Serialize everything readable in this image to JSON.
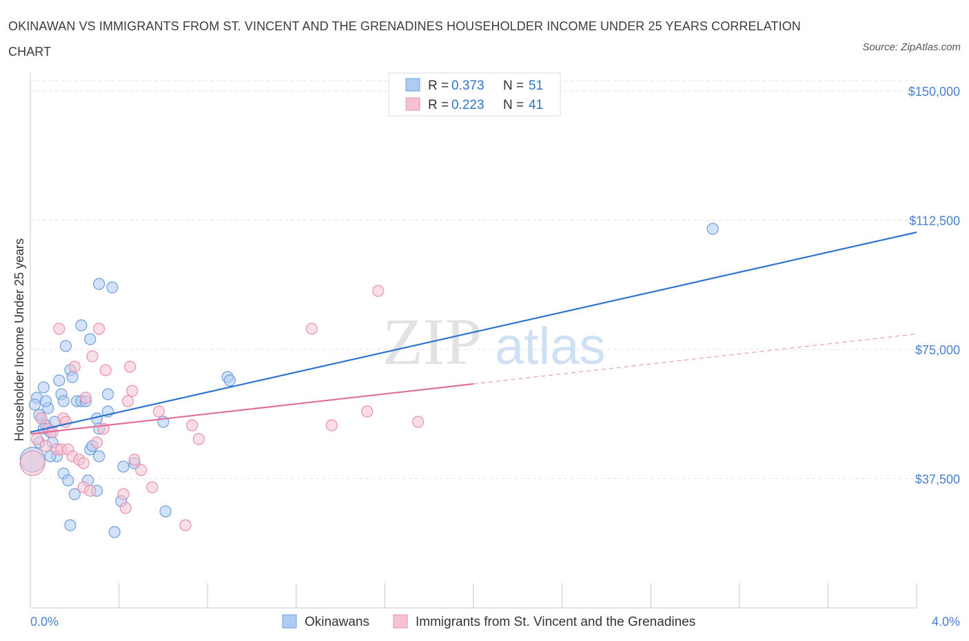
{
  "title": "OKINAWAN VS IMMIGRANTS FROM ST. VINCENT AND THE GRENADINES HOUSEHOLDER INCOME UNDER 25 YEARS CORRELATION CHART",
  "source": "Source: ZipAtlas.com",
  "watermark": {
    "zip": "ZIP",
    "atlas": "atlas"
  },
  "colors": {
    "blue_fill": "#aecbf2",
    "blue_stroke": "#6f9fdc",
    "blue_line": "#2d74d0",
    "pink_fill": "#f6c2d2",
    "pink_stroke": "#e890ac",
    "pink_line": "#e0709a",
    "axis_text": "#4a7fd0",
    "grid": "#e3e3e3"
  },
  "legend_box": [
    {
      "r_label": "R = ",
      "r_value": "0.373",
      "n_label": "N = ",
      "n_value": "51"
    },
    {
      "r_label": "R = ",
      "r_value": "0.223",
      "n_label": "N = ",
      "n_value": "41"
    }
  ],
  "chart_data": {
    "type": "scatter",
    "title": "OKINAWAN VS IMMIGRANTS FROM ST. VINCENT AND THE GRENADINES HOUSEHOLDER INCOME UNDER 25 YEARS CORRELATION CHART",
    "xlabel": "",
    "ylabel": "Householder Income Under 25 years",
    "xlim": [
      0,
      4
    ],
    "ylim": [
      0,
      150000
    ],
    "x_tick_labels": [
      {
        "value": 0,
        "label": "0.0%"
      },
      {
        "value": 4,
        "label": "4.0%"
      }
    ],
    "y_ticks": [
      {
        "value": 37500,
        "label": "$37,500"
      },
      {
        "value": 75000,
        "label": "$75,000"
      },
      {
        "value": 112500,
        "label": "$112,500"
      },
      {
        "value": 150000,
        "label": "$150,000"
      }
    ],
    "grid": true,
    "series": [
      {
        "name": "Okinawans",
        "color": "blue",
        "points": [
          [
            0.03,
            61000
          ],
          [
            0.06,
            64000
          ],
          [
            0.08,
            58000
          ],
          [
            0.05,
            55000
          ],
          [
            0.07,
            53000
          ],
          [
            0.09,
            51000
          ],
          [
            0.1,
            48000
          ],
          [
            0.12,
            44000
          ],
          [
            0.13,
            66000
          ],
          [
            0.14,
            62000
          ],
          [
            0.15,
            60000
          ],
          [
            0.15,
            39000
          ],
          [
            0.16,
            76000
          ],
          [
            0.17,
            37000
          ],
          [
            0.18,
            69000
          ],
          [
            0.19,
            67000
          ],
          [
            0.18,
            24000
          ],
          [
            0.2,
            33000
          ],
          [
            0.21,
            60000
          ],
          [
            0.23,
            60000
          ],
          [
            0.23,
            82000
          ],
          [
            0.26,
            37000
          ],
          [
            0.27,
            78000
          ],
          [
            0.27,
            46000
          ],
          [
            0.3,
            55000
          ],
          [
            0.3,
            34000
          ],
          [
            0.31,
            52000
          ],
          [
            0.31,
            44000
          ],
          [
            0.31,
            94000
          ],
          [
            0.35,
            57000
          ],
          [
            0.35,
            62000
          ],
          [
            0.37,
            93000
          ],
          [
            0.41,
            31000
          ],
          [
            0.42,
            41000
          ],
          [
            0.47,
            42000
          ],
          [
            0.6,
            54000
          ],
          [
            0.61,
            28000
          ],
          [
            0.89,
            67000
          ],
          [
            0.9,
            66000
          ],
          [
            3.08,
            110000
          ],
          [
            0.04,
            56000
          ],
          [
            0.02,
            59000
          ],
          [
            0.07,
            60000
          ],
          [
            0.11,
            54000
          ],
          [
            0.25,
            60000
          ],
          [
            0.28,
            47000
          ],
          [
            0.38,
            22000
          ],
          [
            0.09,
            44000
          ],
          [
            0.04,
            48000
          ],
          [
            0.06,
            52000
          ],
          [
            0.01,
            43000
          ]
        ],
        "trend": {
          "x0": 0,
          "y0": 51000,
          "x1": 4,
          "y1": 109000,
          "dashed_from": null
        }
      },
      {
        "name": "Immigrants from St. Vincent and the Grenadines",
        "color": "pink",
        "points": [
          [
            0.01,
            42000
          ],
          [
            0.03,
            49000
          ],
          [
            0.05,
            55000
          ],
          [
            0.07,
            47000
          ],
          [
            0.08,
            52000
          ],
          [
            0.1,
            51000
          ],
          [
            0.12,
            46000
          ],
          [
            0.13,
            81000
          ],
          [
            0.14,
            46000
          ],
          [
            0.15,
            55000
          ],
          [
            0.16,
            54000
          ],
          [
            0.17,
            46000
          ],
          [
            0.19,
            44000
          ],
          [
            0.2,
            70000
          ],
          [
            0.22,
            43000
          ],
          [
            0.24,
            42000
          ],
          [
            0.24,
            35000
          ],
          [
            0.25,
            61000
          ],
          [
            0.27,
            34000
          ],
          [
            0.28,
            73000
          ],
          [
            0.3,
            48000
          ],
          [
            0.31,
            81000
          ],
          [
            0.33,
            52000
          ],
          [
            0.34,
            69000
          ],
          [
            0.42,
            33000
          ],
          [
            0.44,
            60000
          ],
          [
            0.45,
            70000
          ],
          [
            0.46,
            63000
          ],
          [
            0.47,
            43000
          ],
          [
            0.5,
            40000
          ],
          [
            0.55,
            35000
          ],
          [
            0.58,
            57000
          ],
          [
            0.7,
            24000
          ],
          [
            0.73,
            53000
          ],
          [
            0.76,
            49000
          ],
          [
            1.27,
            81000
          ],
          [
            1.36,
            53000
          ],
          [
            1.52,
            57000
          ],
          [
            1.57,
            92000
          ],
          [
            1.75,
            54000
          ],
          [
            0.43,
            29000
          ]
        ],
        "trend": {
          "x0": 0,
          "y0": 50500,
          "x1": 4,
          "y1": 79500,
          "dashed_from": 2.0
        }
      }
    ]
  },
  "bottom_legend": [
    {
      "label": "Okinawans",
      "color": "blue"
    },
    {
      "label": "Immigrants from St. Vincent and the Grenadines",
      "color": "pink"
    }
  ]
}
